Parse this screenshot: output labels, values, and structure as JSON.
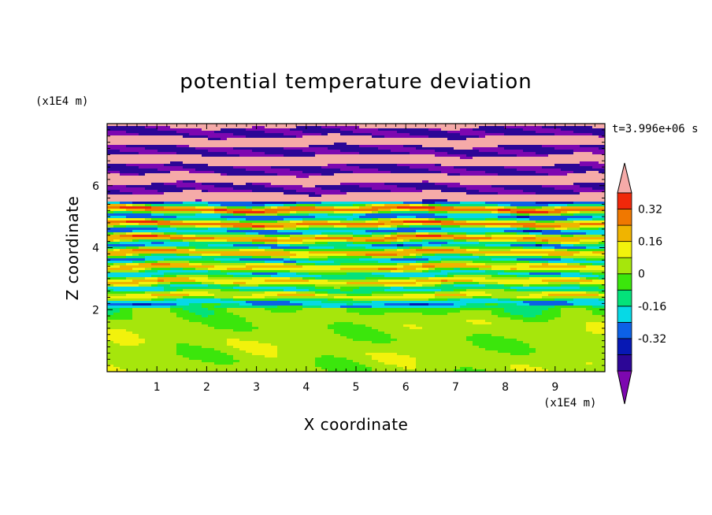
{
  "chart_data": {
    "type": "heatmap",
    "title": "potential temperature deviation",
    "xlabel": "X coordinate",
    "ylabel": "Z coordinate",
    "x_unit": "(x1E4 m)",
    "y_unit": "(x1E4 m)",
    "time_label": "t=3.996e+06 s",
    "xlim": [
      0,
      10
    ],
    "ylim": [
      0,
      8
    ],
    "x_ticks": [
      "1",
      "2",
      "3",
      "4",
      "5",
      "6",
      "7",
      "8",
      "9"
    ],
    "y_ticks": [
      "2",
      "4",
      "6"
    ],
    "colorbar": {
      "levels": [
        -0.48,
        -0.4,
        -0.32,
        -0.24,
        -0.16,
        -0.08,
        0,
        0.08,
        0.16,
        0.24,
        0.32,
        0.4,
        0.48
      ],
      "labeled": [
        "0.32",
        "0.16",
        "0",
        "-0.16",
        "-0.32"
      ],
      "extend": "both",
      "colors": [
        "#7d07b0",
        "#2c0696",
        "#0718b4",
        "#0c61e6",
        "#06d9e6",
        "#04e27a",
        "#3be60c",
        "#a6e60c",
        "#f2f20c",
        "#f0b400",
        "#f07800",
        "#f0280a",
        "#f5aaa8"
      ]
    },
    "regions": [
      {
        "z_range": [
          0,
          2
        ],
        "description_value": "0 to 0.08"
      },
      {
        "z_range": [
          2,
          5.5
        ],
        "description_value": "-0.32 to 0.48"
      },
      {
        "z_range": [
          5.5,
          8
        ],
        "description_value": "-0.48 to 0.48"
      }
    ]
  }
}
